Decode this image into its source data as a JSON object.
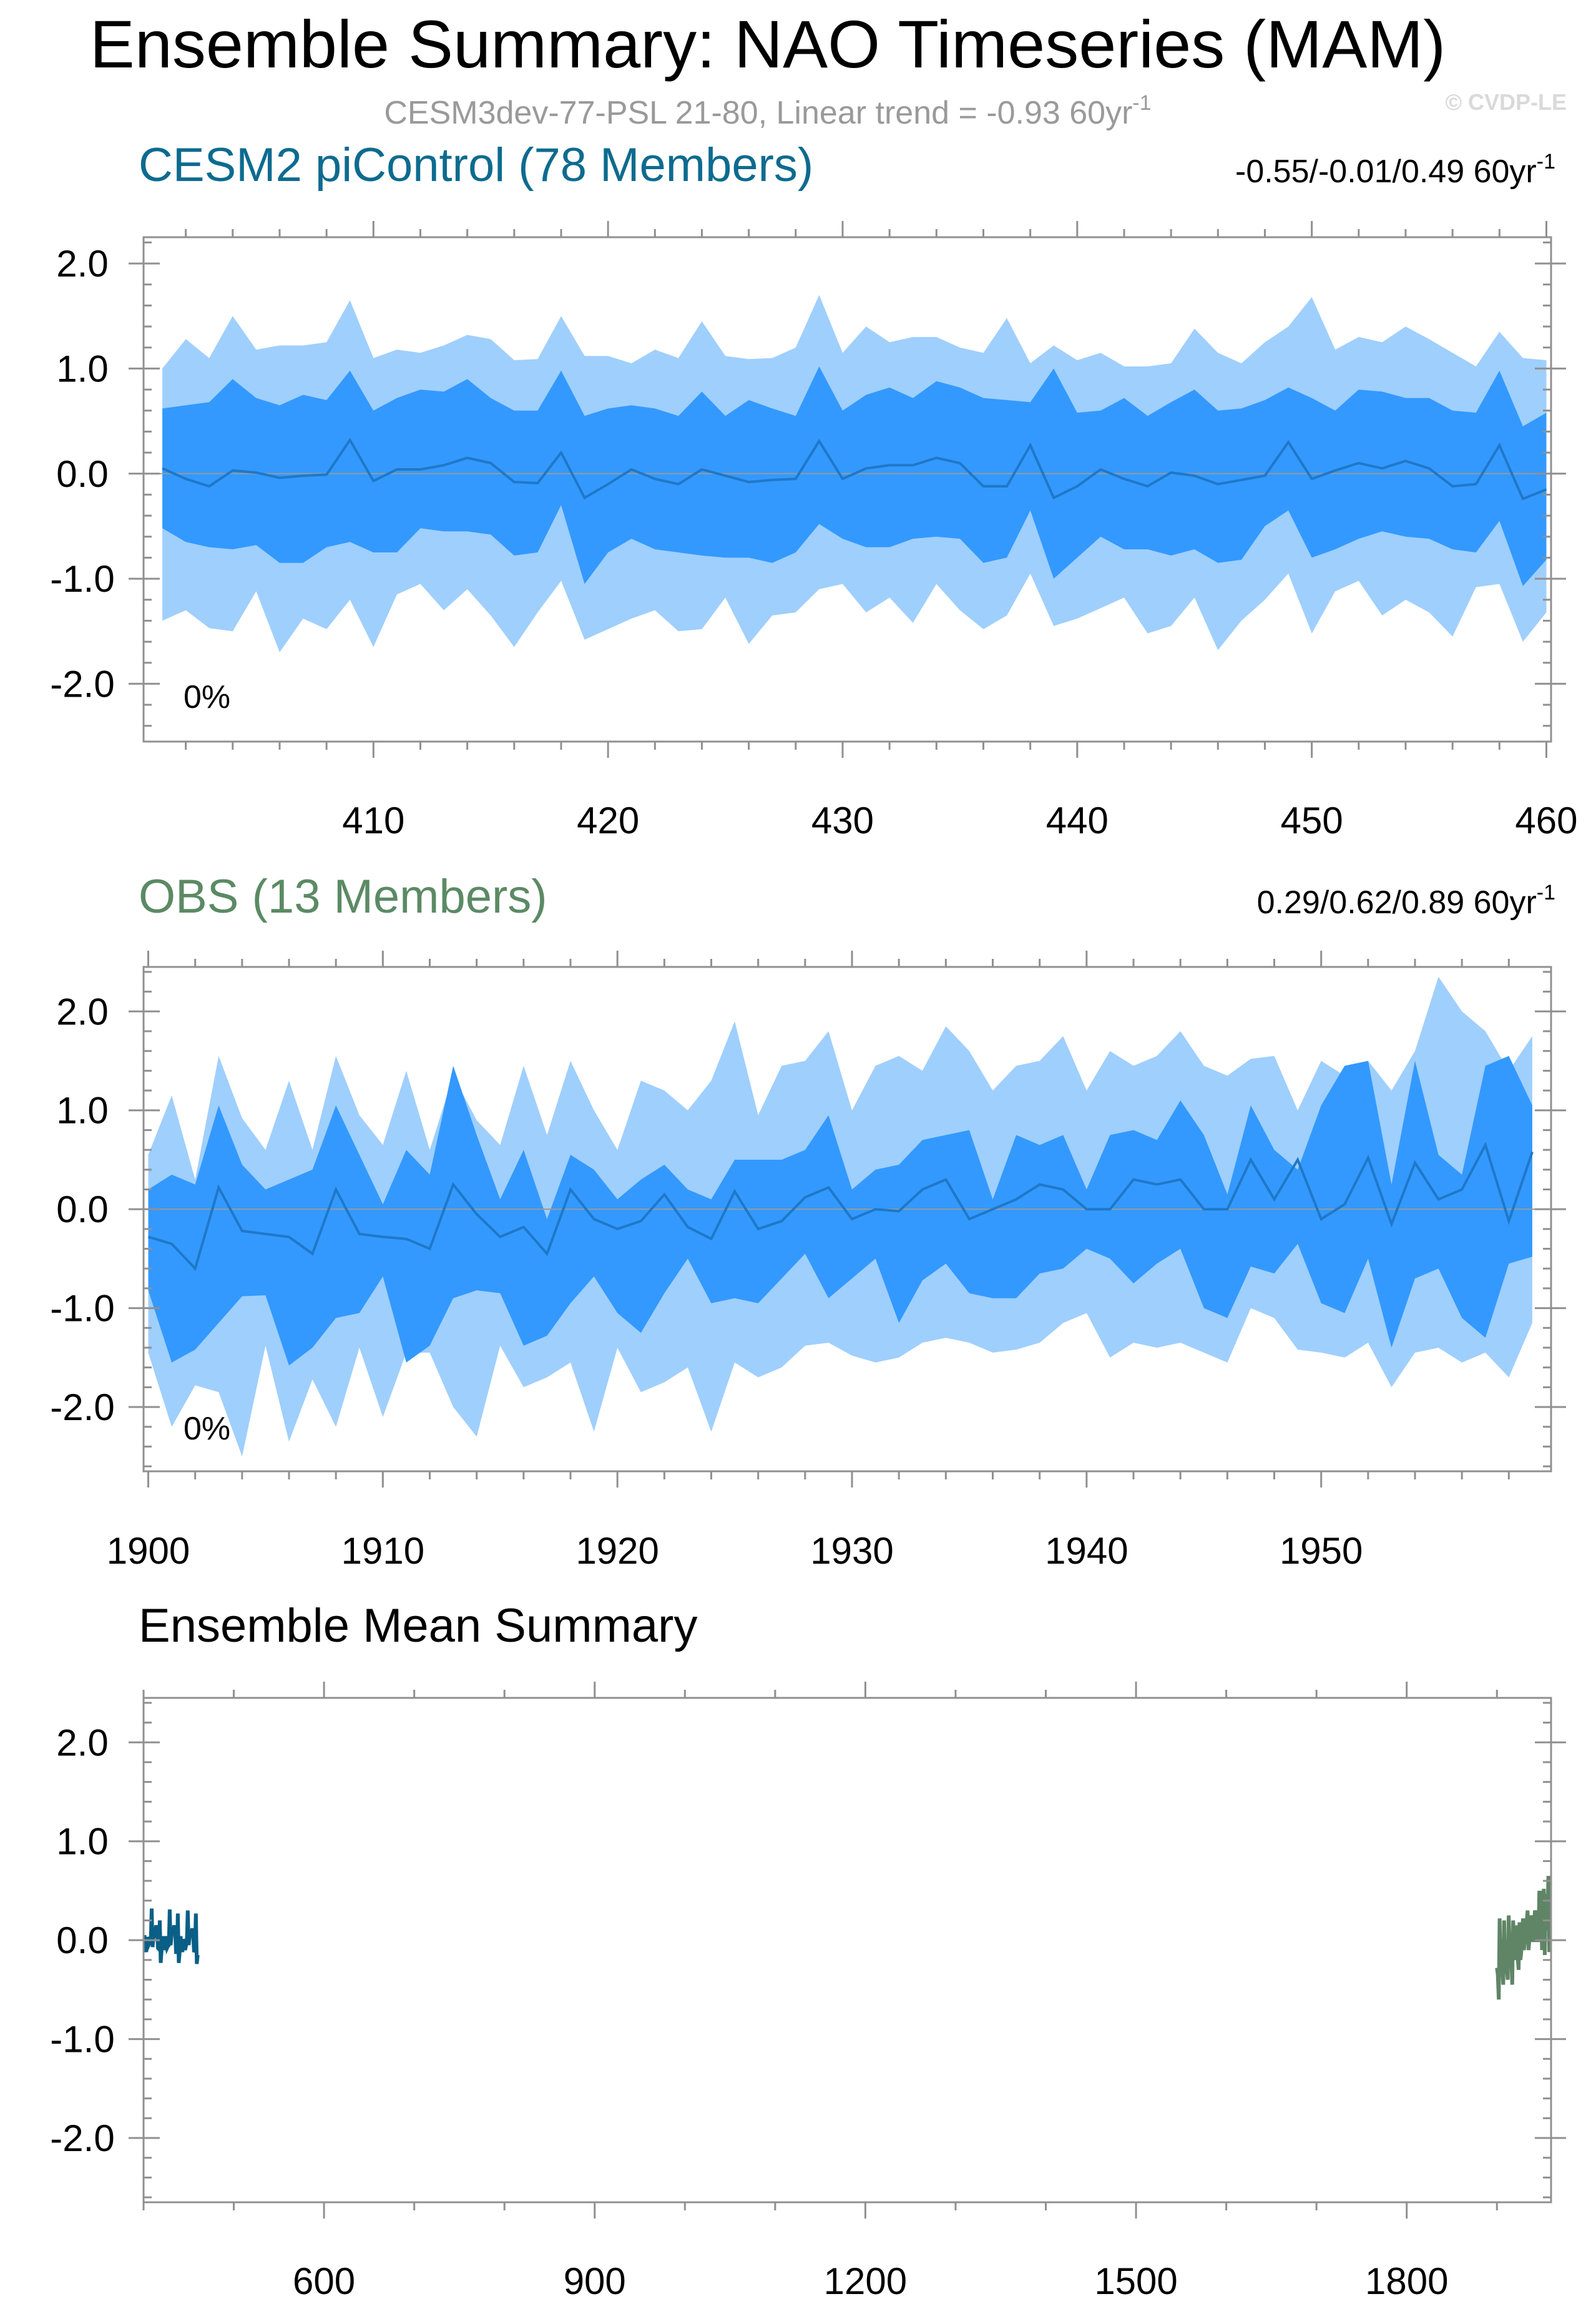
{
  "figure": {
    "title": "Ensemble Summary: NAO Timeseries (MAM)",
    "subtitle": "CESM3dev-77-PSL 21-80, Linear trend = -0.93 60yr",
    "subtitle_sup": "-1",
    "copyright": "© CVDP-LE"
  },
  "colors": {
    "band_outer": "#9fcffd",
    "band_inner": "#3399ff",
    "mean_line": "#1f78c8",
    "cesm_title": "#0d6b8f",
    "obs_title": "#5b8a64",
    "cesm_line": "#0a5f86",
    "obs_line": "#5f8566"
  },
  "chart_data": [
    {
      "type": "area",
      "title": "CESM2 piControl (78 Members)",
      "stats": "-0.55/-0.01/0.49 60yr",
      "stats_sup": "-1",
      "pct": "0%",
      "xlim": [
        400.2,
        460.2
      ],
      "ylim": [
        -2.55,
        2.25
      ],
      "xticks": [
        410,
        420,
        430,
        440,
        450,
        460
      ],
      "yticks": [
        2.0,
        1.0,
        0.0,
        -1.0,
        -2.0
      ],
      "yticklabels": [
        "2.0",
        "1.0",
        "0.0",
        "-1.0",
        "-2.0"
      ],
      "x": [
        401,
        402,
        403,
        404,
        405,
        406,
        407,
        408,
        409,
        410,
        411,
        412,
        413,
        414,
        415,
        416,
        417,
        418,
        419,
        420,
        421,
        422,
        423,
        424,
        425,
        426,
        427,
        428,
        429,
        430,
        431,
        432,
        433,
        434,
        435,
        436,
        437,
        438,
        439,
        440,
        441,
        442,
        443,
        444,
        445,
        446,
        447,
        448,
        449,
        450,
        451,
        452,
        453,
        454,
        455,
        456,
        457,
        458,
        459,
        460
      ],
      "p90": [
        1.0,
        1.28,
        1.1,
        1.5,
        1.18,
        1.22,
        1.22,
        1.25,
        1.65,
        1.1,
        1.18,
        1.15,
        1.22,
        1.32,
        1.28,
        1.08,
        1.09,
        1.5,
        1.12,
        1.12,
        1.05,
        1.18,
        1.1,
        1.45,
        1.12,
        1.09,
        1.1,
        1.2,
        1.7,
        1.15,
        1.4,
        1.25,
        1.3,
        1.3,
        1.2,
        1.15,
        1.48,
        1.05,
        1.22,
        1.08,
        1.15,
        1.02,
        1.02,
        1.05,
        1.38,
        1.15,
        1.05,
        1.25,
        1.4,
        1.68,
        1.18,
        1.3,
        1.25,
        1.4,
        1.28,
        1.15,
        1.02,
        1.35,
        1.1,
        1.08
      ],
      "p75": [
        0.62,
        0.65,
        0.68,
        0.9,
        0.72,
        0.65,
        0.75,
        0.7,
        0.98,
        0.6,
        0.72,
        0.8,
        0.78,
        0.9,
        0.72,
        0.6,
        0.6,
        0.98,
        0.55,
        0.62,
        0.65,
        0.62,
        0.55,
        0.78,
        0.55,
        0.7,
        0.62,
        0.55,
        1.02,
        0.6,
        0.75,
        0.82,
        0.72,
        0.88,
        0.82,
        0.72,
        0.7,
        0.68,
        1.0,
        0.58,
        0.6,
        0.72,
        0.55,
        0.68,
        0.8,
        0.6,
        0.62,
        0.7,
        0.82,
        0.72,
        0.6,
        0.8,
        0.78,
        0.72,
        0.72,
        0.6,
        0.58,
        0.98,
        0.45,
        0.58
      ],
      "mean": [
        0.05,
        -0.05,
        -0.12,
        0.03,
        0.01,
        -0.04,
        -0.02,
        -0.01,
        0.32,
        -0.07,
        0.04,
        0.04,
        0.08,
        0.15,
        0.1,
        -0.08,
        -0.09,
        0.2,
        -0.23,
        -0.1,
        0.04,
        -0.05,
        -0.1,
        0.04,
        -0.02,
        -0.08,
        -0.06,
        -0.05,
        0.31,
        -0.05,
        0.05,
        0.08,
        0.08,
        0.15,
        0.1,
        -0.12,
        -0.12,
        0.27,
        -0.23,
        -0.12,
        0.04,
        -0.05,
        -0.12,
        0.01,
        -0.02,
        -0.1,
        -0.06,
        -0.02,
        0.3,
        -0.05,
        0.03,
        0.1,
        0.05,
        0.12,
        0.05,
        -0.12,
        -0.1,
        0.27,
        -0.24,
        -0.15
      ],
      "p25": [
        -0.52,
        -0.65,
        -0.7,
        -0.72,
        -0.68,
        -0.85,
        -0.85,
        -0.7,
        -0.65,
        -0.75,
        -0.75,
        -0.52,
        -0.55,
        -0.55,
        -0.58,
        -0.78,
        -0.75,
        -0.3,
        -1.05,
        -0.75,
        -0.62,
        -0.72,
        -0.75,
        -0.78,
        -0.8,
        -0.8,
        -0.85,
        -0.75,
        -0.48,
        -0.62,
        -0.7,
        -0.7,
        -0.62,
        -0.6,
        -0.62,
        -0.85,
        -0.8,
        -0.35,
        -1.0,
        -0.8,
        -0.6,
        -0.72,
        -0.72,
        -0.78,
        -0.72,
        -0.85,
        -0.82,
        -0.5,
        -0.35,
        -0.8,
        -0.72,
        -0.62,
        -0.55,
        -0.6,
        -0.62,
        -0.72,
        -0.75,
        -0.45,
        -1.07,
        -0.82
      ],
      "p10": [
        -1.4,
        -1.3,
        -1.47,
        -1.5,
        -1.12,
        -1.7,
        -1.38,
        -1.48,
        -1.2,
        -1.65,
        -1.15,
        -1.05,
        -1.3,
        -1.1,
        -1.35,
        -1.65,
        -1.32,
        -1.02,
        -1.58,
        -1.48,
        -1.38,
        -1.3,
        -1.5,
        -1.48,
        -1.18,
        -1.62,
        -1.35,
        -1.32,
        -1.1,
        -1.05,
        -1.32,
        -1.18,
        -1.42,
        -1.05,
        -1.3,
        -1.48,
        -1.35,
        -0.95,
        -1.45,
        -1.38,
        -1.28,
        -1.18,
        -1.52,
        -1.45,
        -1.18,
        -1.68,
        -1.4,
        -1.2,
        -0.95,
        -1.52,
        -1.12,
        -1.02,
        -1.35,
        -1.2,
        -1.32,
        -1.55,
        -1.08,
        -1.05,
        -1.6,
        -1.32
      ]
    },
    {
      "type": "area",
      "title": "OBS (13 Members)",
      "stats": "0.29/0.62/0.89 60yr",
      "stats_sup": "-1",
      "pct": "0%",
      "xlim": [
        1899.8,
        1959.8
      ],
      "ylim": [
        -2.65,
        2.45
      ],
      "xticks": [
        1900,
        1910,
        1920,
        1930,
        1940,
        1950
      ],
      "yticks": [
        2.0,
        1.0,
        0.0,
        -1.0,
        -2.0
      ],
      "yticklabels": [
        "2.0",
        "1.0",
        "0.0",
        "-1.0",
        "-2.0"
      ],
      "x": [
        1900,
        1901,
        1902,
        1903,
        1904,
        1905,
        1906,
        1907,
        1908,
        1909,
        1910,
        1911,
        1912,
        1913,
        1914,
        1915,
        1916,
        1917,
        1918,
        1919,
        1920,
        1921,
        1922,
        1923,
        1924,
        1925,
        1926,
        1927,
        1928,
        1929,
        1930,
        1931,
        1932,
        1933,
        1934,
        1935,
        1936,
        1937,
        1938,
        1939,
        1940,
        1941,
        1942,
        1943,
        1944,
        1945,
        1946,
        1947,
        1948,
        1949,
        1950,
        1951,
        1952,
        1953,
        1954,
        1955,
        1956,
        1957,
        1958,
        1959
      ],
      "p90": [
        0.55,
        1.15,
        0.3,
        1.55,
        0.92,
        0.6,
        1.3,
        0.6,
        1.55,
        0.95,
        0.65,
        1.4,
        0.6,
        1.35,
        0.9,
        0.65,
        1.45,
        0.75,
        1.5,
        1.0,
        0.6,
        1.3,
        1.2,
        1.0,
        1.3,
        1.9,
        0.95,
        1.45,
        1.5,
        1.8,
        1.0,
        1.45,
        1.55,
        1.4,
        1.85,
        1.6,
        1.2,
        1.45,
        1.5,
        1.75,
        1.2,
        1.6,
        1.45,
        1.55,
        1.8,
        1.45,
        1.35,
        1.52,
        1.55,
        1.0,
        1.5,
        1.35,
        1.5,
        1.2,
        1.6,
        2.35,
        2.0,
        1.8,
        1.4,
        1.75
      ],
      "p75": [
        0.2,
        0.35,
        0.25,
        1.05,
        0.45,
        0.2,
        0.3,
        0.4,
        1.05,
        0.55,
        0.05,
        0.6,
        0.35,
        1.45,
        0.75,
        0.1,
        0.6,
        -0.1,
        0.55,
        0.4,
        0.1,
        0.3,
        0.45,
        0.2,
        0.1,
        0.5,
        0.5,
        0.5,
        0.6,
        0.95,
        0.2,
        0.4,
        0.45,
        0.7,
        0.75,
        0.8,
        0.1,
        0.75,
        0.65,
        0.75,
        0.2,
        0.75,
        0.8,
        0.7,
        1.1,
        0.75,
        0.15,
        1.05,
        0.6,
        0.4,
        1.05,
        1.45,
        1.5,
        0.25,
        1.5,
        0.55,
        0.35,
        1.45,
        1.55,
        1.05
      ],
      "mean": [
        -0.28,
        -0.35,
        -0.6,
        0.22,
        -0.22,
        -0.25,
        -0.28,
        -0.45,
        0.2,
        -0.25,
        -0.28,
        -0.3,
        -0.4,
        0.25,
        -0.05,
        -0.28,
        -0.18,
        -0.45,
        0.2,
        -0.1,
        -0.2,
        -0.12,
        0.15,
        -0.18,
        -0.3,
        0.18,
        -0.2,
        -0.12,
        0.12,
        0.22,
        -0.1,
        0.0,
        -0.02,
        0.2,
        0.3,
        -0.1,
        0.0,
        0.1,
        0.25,
        0.2,
        0.0,
        0.0,
        0.3,
        0.25,
        0.3,
        0.0,
        0.0,
        0.5,
        0.1,
        0.5,
        -0.1,
        0.05,
        0.52,
        -0.15,
        0.47,
        0.1,
        0.2,
        0.65,
        -0.12,
        0.58
      ],
      "p25": [
        -0.82,
        -1.55,
        -1.42,
        -1.15,
        -0.88,
        -0.87,
        -1.58,
        -1.4,
        -1.1,
        -1.05,
        -0.68,
        -1.55,
        -1.38,
        -0.9,
        -0.82,
        -0.85,
        -1.38,
        -1.28,
        -0.95,
        -0.68,
        -1.05,
        -1.25,
        -0.85,
        -0.5,
        -0.95,
        -0.9,
        -0.95,
        -0.7,
        -0.45,
        -0.9,
        -0.7,
        -0.5,
        -1.15,
        -0.72,
        -0.55,
        -0.85,
        -0.9,
        -0.9,
        -0.65,
        -0.6,
        -0.4,
        -0.5,
        -0.75,
        -0.55,
        -0.4,
        -1.0,
        -1.1,
        -0.58,
        -0.65,
        -0.35,
        -0.95,
        -1.05,
        -0.5,
        -1.4,
        -0.7,
        -0.6,
        -1.1,
        -1.3,
        -0.55,
        -0.48
      ],
      "p10": [
        -1.45,
        -2.2,
        -1.78,
        -1.85,
        -2.5,
        -1.38,
        -2.35,
        -1.72,
        -2.2,
        -1.4,
        -2.1,
        -1.45,
        -1.45,
        -2.0,
        -2.3,
        -1.38,
        -1.8,
        -1.7,
        -1.55,
        -2.25,
        -1.4,
        -1.85,
        -1.75,
        -1.6,
        -2.25,
        -1.55,
        -1.7,
        -1.6,
        -1.38,
        -1.35,
        -1.48,
        -1.55,
        -1.5,
        -1.35,
        -1.3,
        -1.35,
        -1.45,
        -1.42,
        -1.35,
        -1.15,
        -1.05,
        -1.5,
        -1.35,
        -1.4,
        -1.35,
        -1.45,
        -1.55,
        -1.0,
        -1.1,
        -1.42,
        -1.45,
        -1.5,
        -1.35,
        -1.8,
        -1.45,
        -1.4,
        -1.55,
        -1.45,
        -1.7,
        -1.15
      ]
    },
    {
      "type": "line",
      "title": "Ensemble Mean Summary",
      "xlim": [
        400,
        1960
      ],
      "ylim": [
        -2.65,
        2.45
      ],
      "xticks": [
        600,
        900,
        1200,
        1500,
        1800
      ],
      "yticks": [
        2.0,
        1.0,
        0.0,
        -1.0,
        -2.0
      ],
      "yticklabels": [
        "2.0",
        "1.0",
        "0.0",
        "-1.0",
        "-2.0"
      ],
      "series_colors": [
        "#0a5f86",
        "#5f8566"
      ],
      "series": [
        {
          "x": [
            401,
            402,
            403,
            404,
            405,
            406,
            407,
            408,
            409,
            410,
            411,
            412,
            413,
            414,
            415,
            416,
            417,
            418,
            419,
            420,
            421,
            422,
            423,
            424,
            425,
            426,
            427,
            428,
            429,
            430,
            431,
            432,
            433,
            434,
            435,
            436,
            437,
            438,
            439,
            440,
            441,
            442,
            443,
            444,
            445,
            446,
            447,
            448,
            449,
            450,
            451,
            452,
            453,
            454,
            455,
            456,
            457,
            458,
            459,
            460
          ],
          "values": [
            0.05,
            -0.05,
            -0.12,
            0.03,
            0.01,
            -0.04,
            -0.02,
            -0.01,
            0.32,
            -0.07,
            0.04,
            0.04,
            0.08,
            0.15,
            0.1,
            -0.08,
            -0.09,
            0.2,
            -0.23,
            -0.1,
            0.04,
            -0.05,
            -0.1,
            0.04,
            -0.02,
            -0.08,
            -0.06,
            -0.05,
            0.31,
            -0.05,
            0.05,
            0.08,
            0.08,
            0.15,
            0.1,
            -0.12,
            -0.12,
            0.27,
            -0.23,
            -0.12,
            0.04,
            -0.05,
            -0.12,
            0.01,
            -0.02,
            -0.1,
            -0.06,
            -0.02,
            0.3,
            -0.05,
            0.03,
            0.1,
            0.05,
            0.12,
            0.05,
            -0.12,
            -0.1,
            0.27,
            -0.24,
            -0.15
          ]
        },
        {
          "x": [
            1900,
            1901,
            1902,
            1903,
            1904,
            1905,
            1906,
            1907,
            1908,
            1909,
            1910,
            1911,
            1912,
            1913,
            1914,
            1915,
            1916,
            1917,
            1918,
            1919,
            1920,
            1921,
            1922,
            1923,
            1924,
            1925,
            1926,
            1927,
            1928,
            1929,
            1930,
            1931,
            1932,
            1933,
            1934,
            1935,
            1936,
            1937,
            1938,
            1939,
            1940,
            1941,
            1942,
            1943,
            1944,
            1945,
            1946,
            1947,
            1948,
            1949,
            1950,
            1951,
            1952,
            1953,
            1954,
            1955,
            1956,
            1957,
            1958,
            1959
          ],
          "values": [
            -0.28,
            -0.35,
            -0.6,
            0.22,
            -0.22,
            -0.25,
            -0.28,
            -0.45,
            0.2,
            -0.25,
            -0.28,
            -0.3,
            -0.4,
            0.25,
            -0.05,
            -0.28,
            -0.18,
            -0.45,
            0.2,
            -0.1,
            -0.2,
            -0.12,
            0.15,
            -0.18,
            -0.3,
            0.18,
            -0.2,
            -0.12,
            0.12,
            0.22,
            -0.1,
            0.0,
            -0.02,
            0.2,
            0.3,
            -0.1,
            0.0,
            0.1,
            0.25,
            0.2,
            0.0,
            0.0,
            0.3,
            0.25,
            0.3,
            0.0,
            0.0,
            0.5,
            0.1,
            0.5,
            -0.1,
            0.05,
            0.52,
            -0.15,
            0.47,
            0.1,
            0.2,
            0.65,
            -0.12,
            0.58
          ]
        }
      ]
    }
  ]
}
